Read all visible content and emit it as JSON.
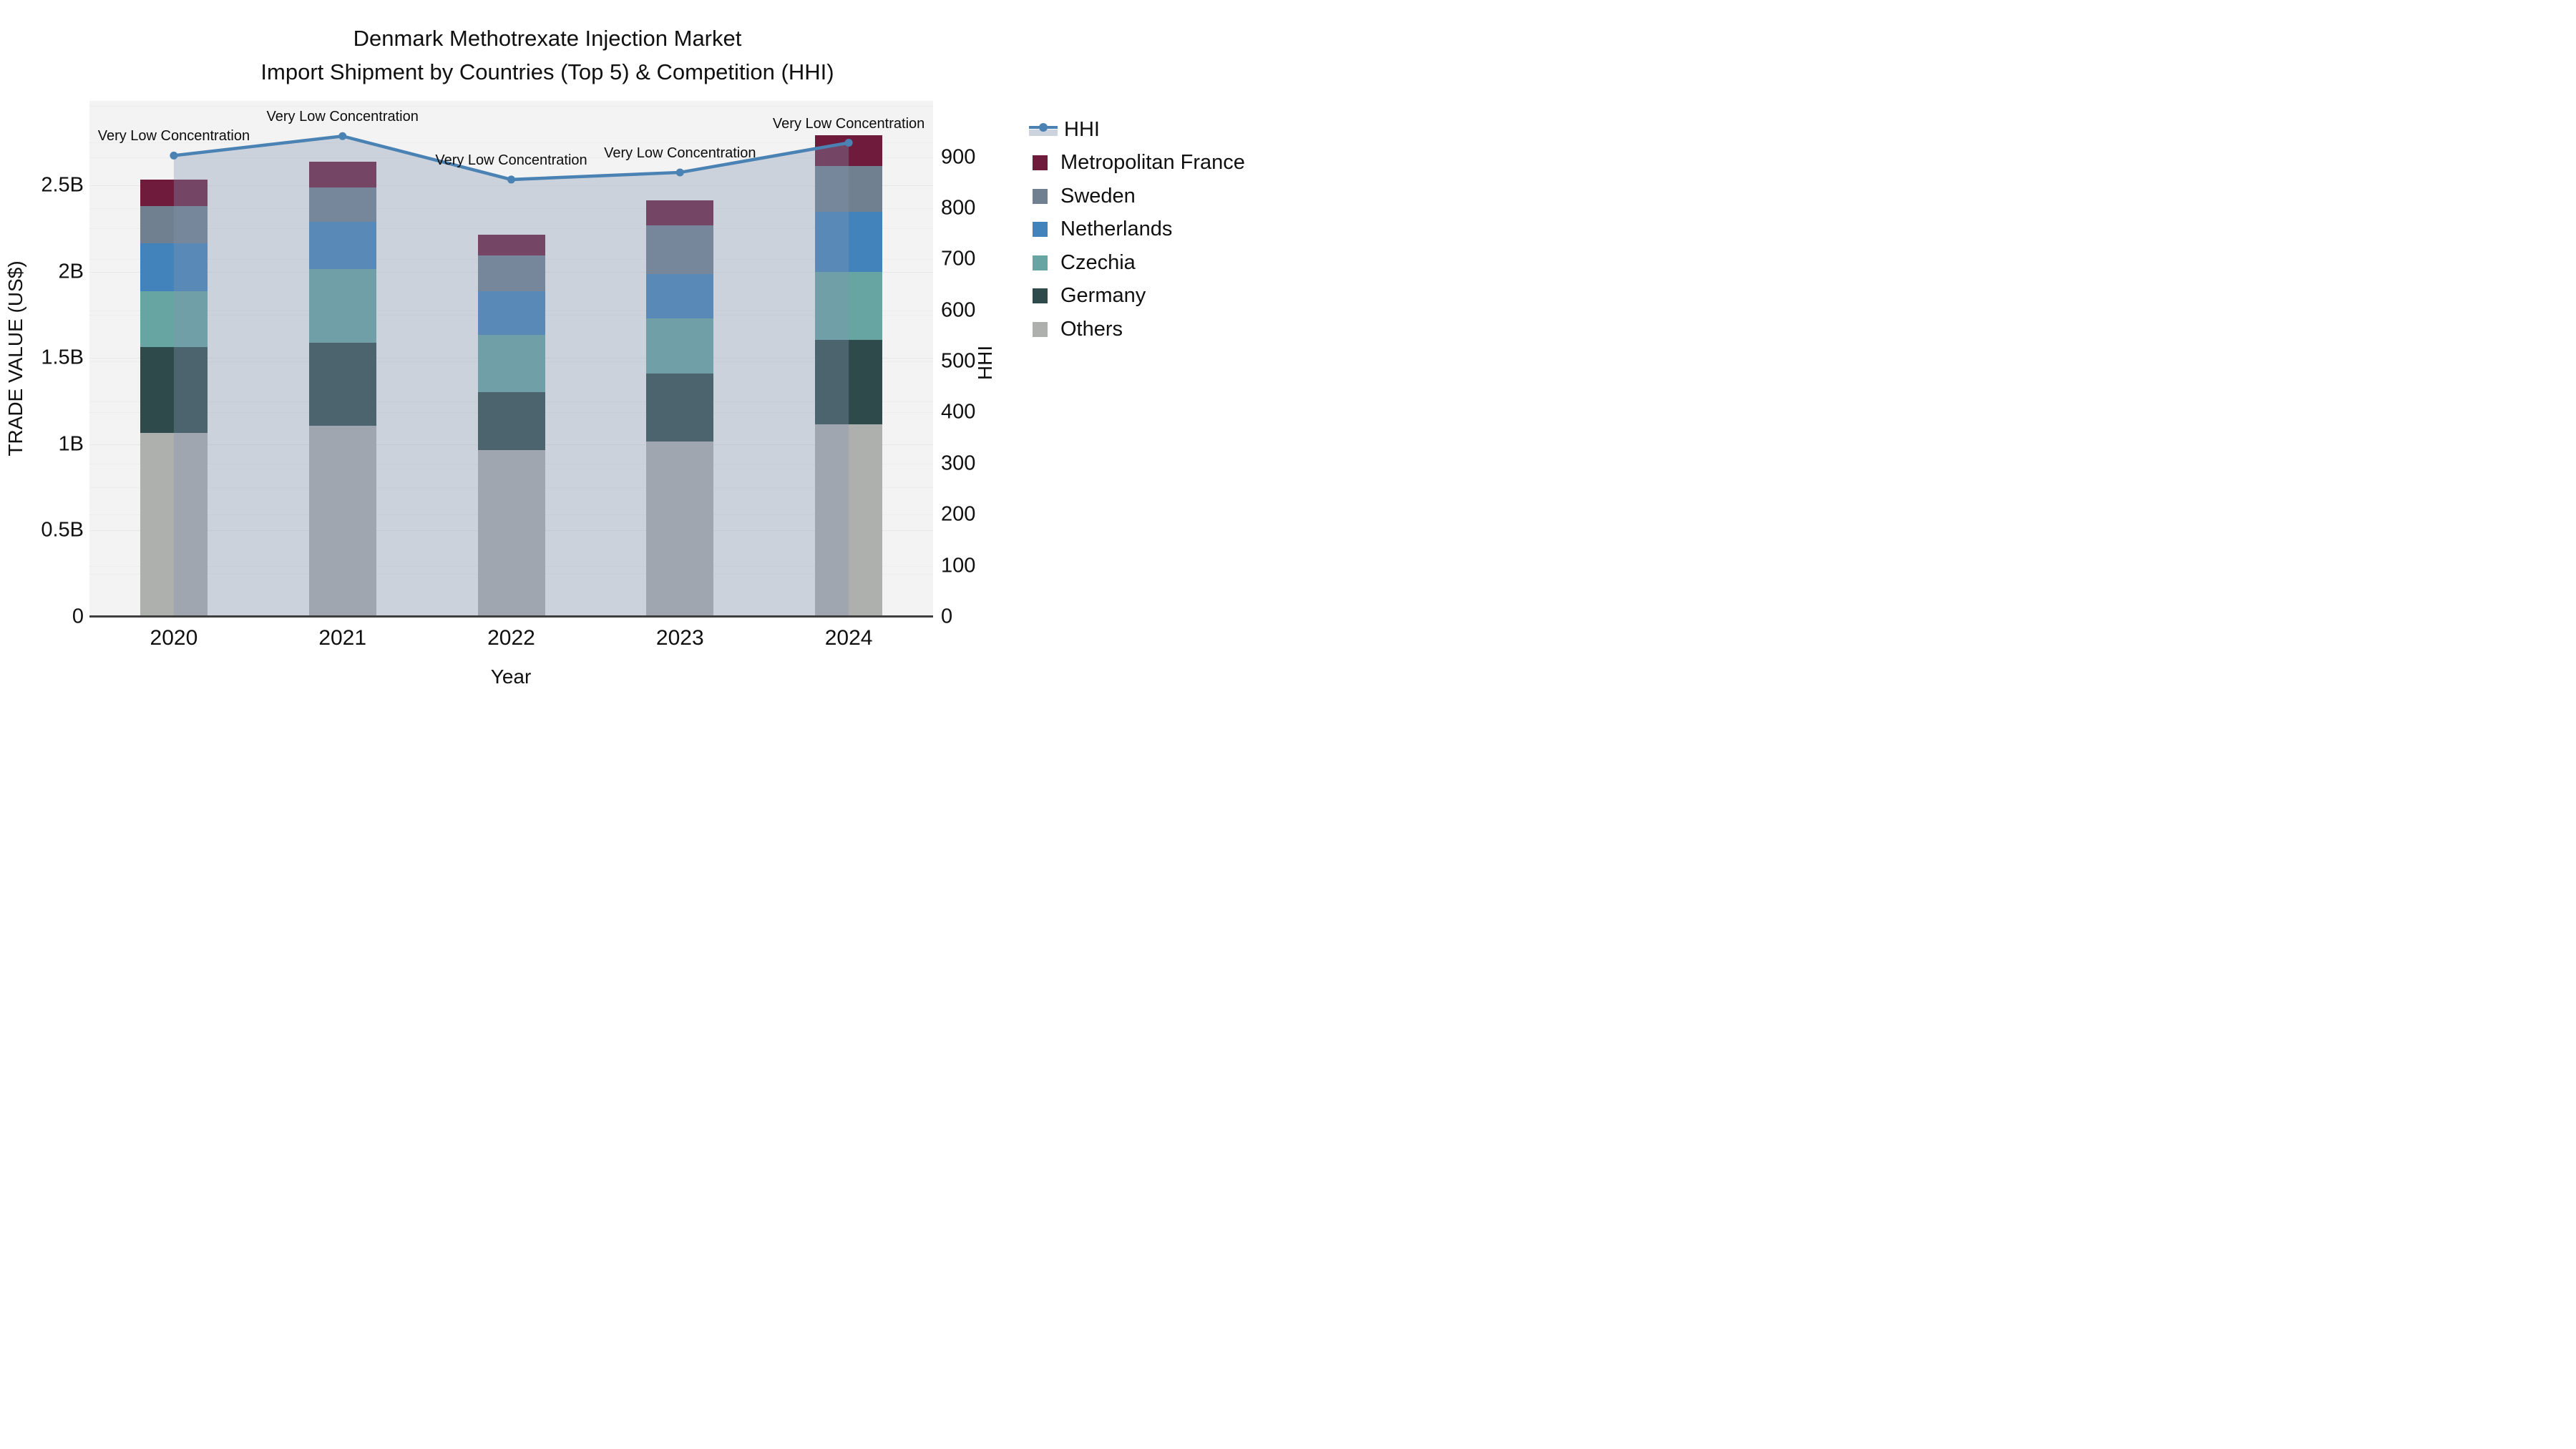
{
  "chart_data": {
    "type": "bar",
    "subtype": "stacked-bar-with-line-combo",
    "title_line1": "Denmark Methotrexate Injection Market",
    "title_line2": "Import Shipment by Countries (Top 5) & Competition (HHI)",
    "xlabel": "Year",
    "ylabel_left": "TRADE VALUE (US$)",
    "ylabel_right": "HHI",
    "categories": [
      "2020",
      "2021",
      "2022",
      "2023",
      "2024"
    ],
    "value_unit": "billions US$",
    "series": [
      {
        "name": "Metropolitan France",
        "color": "#6e1b3c",
        "values": [
          0.155,
          0.15,
          0.122,
          0.145,
          0.181
        ]
      },
      {
        "name": "Sweden",
        "color": "#718090",
        "values": [
          0.215,
          0.2,
          0.206,
          0.284,
          0.263
        ]
      },
      {
        "name": "Netherlands",
        "color": "#4383bb",
        "values": [
          0.28,
          0.274,
          0.252,
          0.257,
          0.351
        ]
      },
      {
        "name": "Czechia",
        "color": "#66a5a1",
        "values": [
          0.32,
          0.427,
          0.334,
          0.317,
          0.394
        ]
      },
      {
        "name": "Germany",
        "color": "#2e4a4a",
        "values": [
          0.5,
          0.48,
          0.336,
          0.396,
          0.489
        ]
      },
      {
        "name": "Others",
        "color": "#aeb0ae",
        "values": [
          1.065,
          1.107,
          0.966,
          1.016,
          1.115
        ]
      }
    ],
    "stack_order_bottom_to_top": [
      "Others",
      "Germany",
      "Czechia",
      "Netherlands",
      "Sweden",
      "Metropolitan France"
    ],
    "line_series": {
      "name": "HHI",
      "color": "#4a82b4",
      "area_fill": "rgba(131,149,177,0.35)",
      "legend_band_color": "#ccd3dd",
      "values": [
        903,
        941,
        856,
        870,
        928
      ]
    },
    "annotations": [
      {
        "category": "2020",
        "text": "Very Low Concentration"
      },
      {
        "category": "2021",
        "text": "Very Low Concentration"
      },
      {
        "category": "2022",
        "text": "Very Low Concentration"
      },
      {
        "category": "2023",
        "text": "Very Low Concentration"
      },
      {
        "category": "2024",
        "text": "Very Low Concentration"
      }
    ],
    "y_left": {
      "ticks": [
        "0",
        "0.5B",
        "1B",
        "1.5B",
        "2B",
        "2.5B"
      ],
      "tick_values": [
        0,
        0.5,
        1,
        1.5,
        2,
        2.5
      ],
      "range": [
        0,
        2.99
      ]
    },
    "y_right": {
      "ticks": [
        "0",
        "100",
        "200",
        "300",
        "400",
        "500",
        "600",
        "700",
        "800",
        "900"
      ],
      "tick_values": [
        0,
        100,
        200,
        300,
        400,
        500,
        600,
        700,
        800,
        900
      ],
      "range": [
        0,
        1010
      ]
    },
    "legend_position": "right",
    "legend_items": [
      "HHI",
      "Metropolitan France",
      "Sweden",
      "Netherlands",
      "Czechia",
      "Germany",
      "Others"
    ],
    "plot_background": "#f3f3f3",
    "grid": true
  }
}
